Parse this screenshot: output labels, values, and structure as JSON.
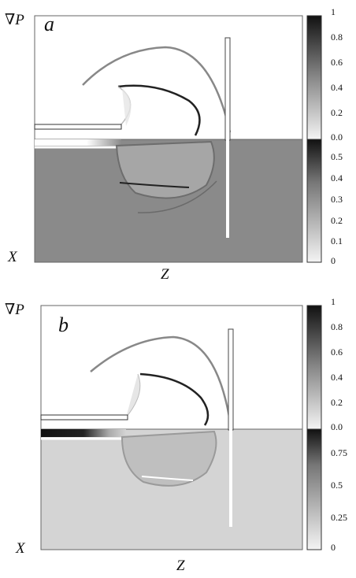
{
  "figure": {
    "panels": [
      {
        "id": "a",
        "letter": "a",
        "y_label": "∇P",
        "x_label": "X",
        "z_label": "Z",
        "upper_scale_ticks": [
          "1",
          "0.8",
          "0.6",
          "0.4",
          "0.2",
          "0.0"
        ],
        "lower_scale_ticks": [
          "0.5",
          "0.4",
          "0.3",
          "0.2",
          "0.1",
          "0"
        ]
      },
      {
        "id": "b",
        "letter": "b",
        "y_label": "∇P",
        "x_label": "X",
        "z_label": "Z",
        "upper_scale_ticks": [
          "1",
          "0.8",
          "0.6",
          "0.4",
          "0.2",
          "0.0"
        ],
        "lower_scale_ticks": [
          "0.75",
          "0.5",
          "0.25",
          "0"
        ]
      }
    ]
  }
}
